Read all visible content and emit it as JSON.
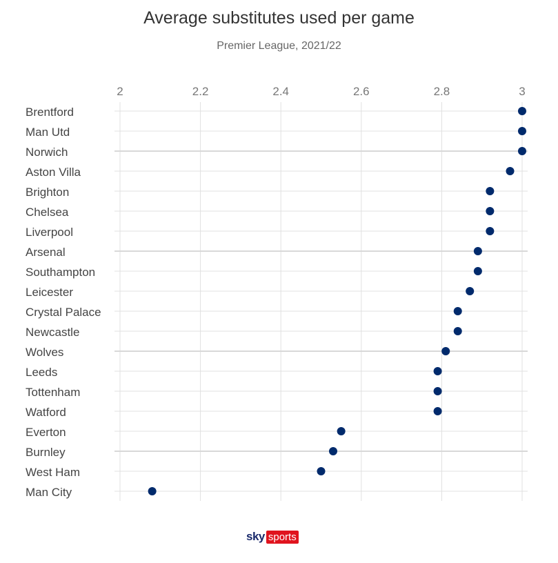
{
  "chart_data": {
    "type": "scatter",
    "title": "Average substitutes used per game",
    "subtitle": "Premier League, 2021/22",
    "xlabel": "",
    "ylabel": "",
    "xlim": [
      2,
      3
    ],
    "x_ticks": [
      "2",
      "2.2",
      "2.4",
      "2.6",
      "2.8",
      "3"
    ],
    "grid": true,
    "categories": [
      "Brentford",
      "Man Utd",
      "Norwich",
      "Aston Villa",
      "Brighton",
      "Chelsea",
      "Liverpool",
      "Arsenal",
      "Southampton",
      "Leicester",
      "Crystal Palace",
      "Newcastle",
      "Wolves",
      "Leeds",
      "Tottenham",
      "Watford",
      "Everton",
      "Burnley",
      "West Ham",
      "Man City"
    ],
    "values": [
      3.0,
      3.0,
      3.0,
      2.97,
      2.92,
      2.92,
      2.92,
      2.89,
      2.89,
      2.87,
      2.84,
      2.84,
      2.81,
      2.79,
      2.79,
      2.79,
      2.55,
      2.53,
      2.5,
      2.08
    ],
    "colors": {
      "point": "#002a6c",
      "grid": "#e0e0e0"
    }
  },
  "logo": {
    "sky": "sky",
    "sports": "sports"
  }
}
